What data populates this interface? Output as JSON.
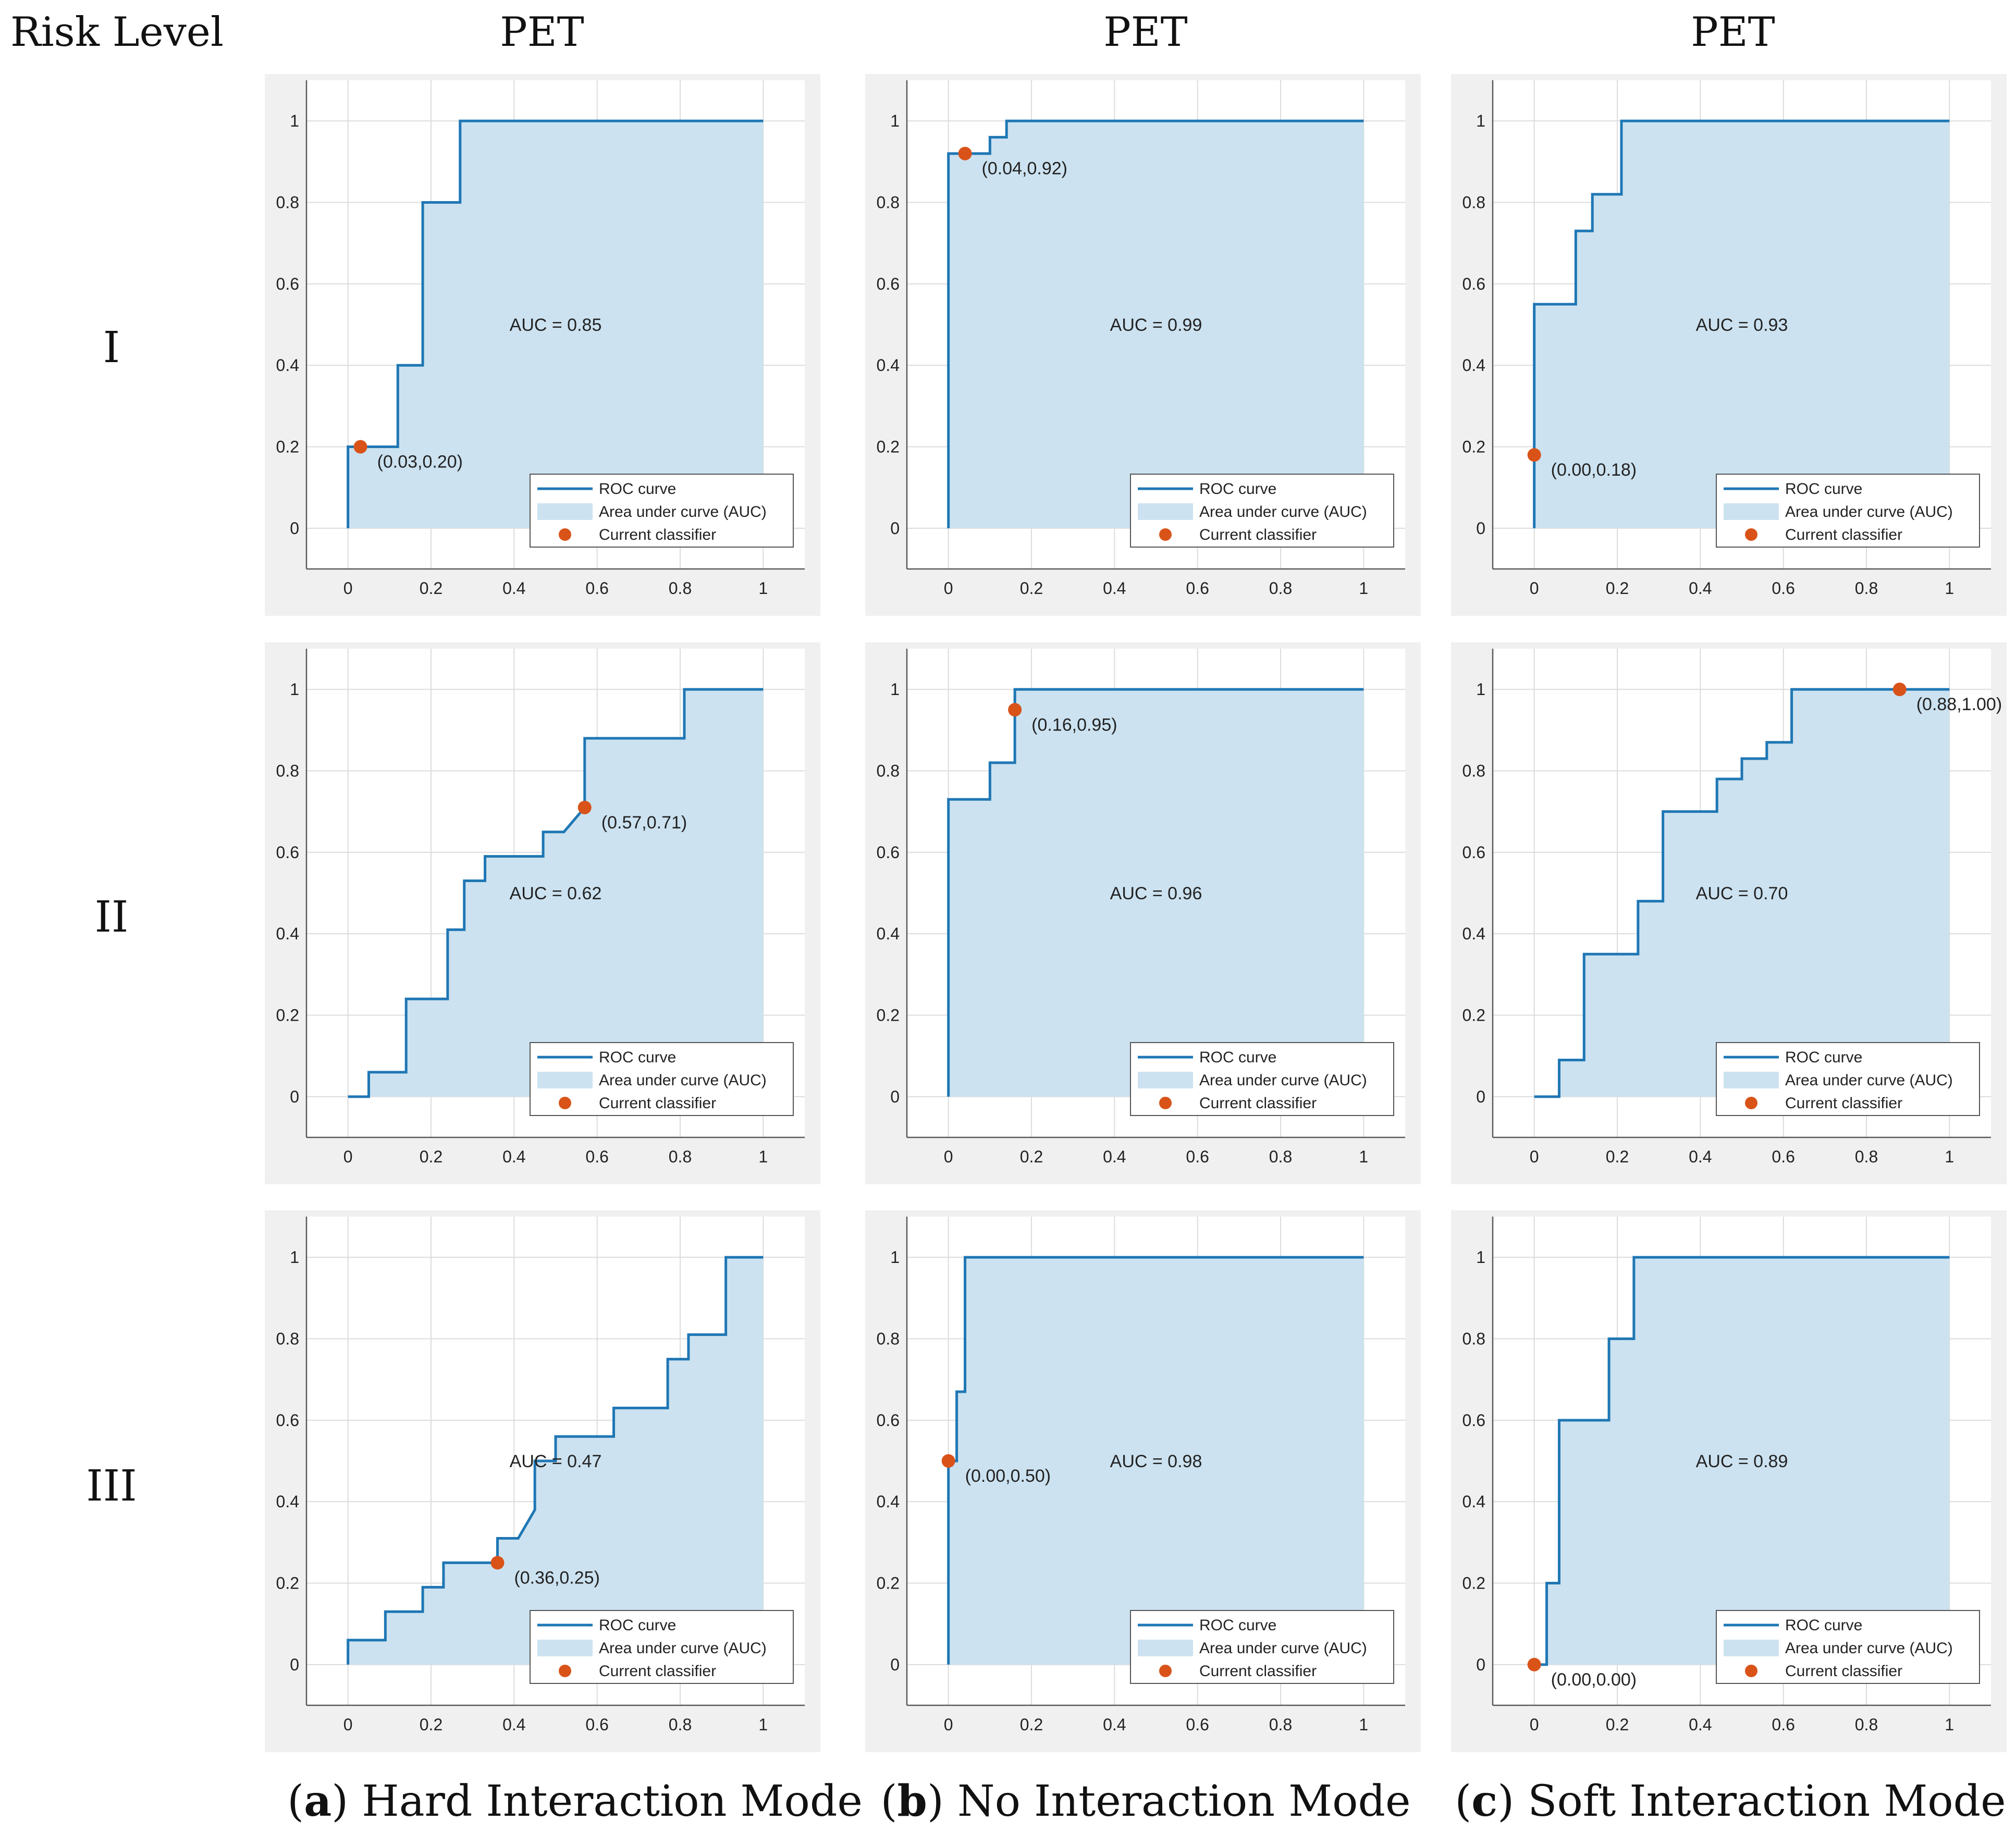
{
  "header": {
    "risk_level_label": "Risk Level",
    "column_titles": [
      "PET",
      "PET",
      "PET"
    ]
  },
  "row_labels": [
    "I",
    "II",
    "III"
  ],
  "captions": [
    {
      "letter": "a",
      "text": " Hard Interaction Mode"
    },
    {
      "letter": "b",
      "text": " No Interaction Mode"
    },
    {
      "letter": "c",
      "text": " Soft Interaction Mode"
    }
  ],
  "colors": {
    "roc_line": "#1f77b4",
    "auc_fill": "#cce2f0",
    "classifier_point": "#d95319"
  },
  "chart_data": [
    {
      "type": "line",
      "title": "",
      "column": "Hard Interaction Mode",
      "risk_level": "I",
      "legend": [
        "ROC curve",
        "Area under curve (AUC)",
        "Current classifier"
      ],
      "auc_label": "AUC = 0.85",
      "point_label": "(0.03,0.20)",
      "point": [
        0.03,
        0.2
      ],
      "xlim": [
        -0.1,
        1.1
      ],
      "ylim": [
        -0.1,
        1.1
      ],
      "xticks": [
        0,
        0.2,
        0.4,
        0.6,
        0.8,
        1
      ],
      "yticks": [
        0,
        0.2,
        0.4,
        0.6,
        0.8,
        1
      ],
      "xticklabels": [
        "0",
        "0.2",
        "0.4",
        "0.6",
        "0.8",
        "1"
      ],
      "yticklabels": [
        "0",
        "0.2",
        "0.4",
        "0.6",
        "0.8",
        "1"
      ],
      "roc_fpr": [
        0,
        0,
        0.12,
        0.12,
        0.18,
        0.18,
        0.27,
        0.27,
        1
      ],
      "roc_tpr": [
        0,
        0.2,
        0.2,
        0.4,
        0.4,
        0.8,
        0.8,
        1,
        1
      ]
    },
    {
      "type": "line",
      "title": "",
      "column": "No Interaction Mode",
      "risk_level": "I",
      "legend": [
        "ROC curve",
        "Area under curve (AUC)",
        "Current classifier"
      ],
      "auc_label": "AUC = 0.99",
      "point_label": "(0.04,0.92)",
      "point": [
        0.04,
        0.92
      ],
      "xlim": [
        -0.1,
        1.1
      ],
      "ylim": [
        -0.1,
        1.1
      ],
      "xticks": [
        0,
        0.2,
        0.4,
        0.6,
        0.8,
        1
      ],
      "yticks": [
        0,
        0.2,
        0.4,
        0.6,
        0.8,
        1
      ],
      "xticklabels": [
        "0",
        "0.2",
        "0.4",
        "0.6",
        "0.8",
        "1"
      ],
      "yticklabels": [
        "0",
        "0.2",
        "0.4",
        "0.6",
        "0.8",
        "1"
      ],
      "roc_fpr": [
        0,
        0,
        0.1,
        0.1,
        0.14,
        0.14,
        1
      ],
      "roc_tpr": [
        0,
        0.92,
        0.92,
        0.96,
        0.96,
        1,
        1
      ]
    },
    {
      "type": "line",
      "title": "",
      "column": "Soft Interaction Mode",
      "risk_level": "I",
      "legend": [
        "ROC curve",
        "Area under curve (AUC)",
        "Current classifier"
      ],
      "auc_label": "AUC = 0.93",
      "point_label": "(0.00,0.18)",
      "point": [
        0.0,
        0.18
      ],
      "xlim": [
        -0.1,
        1.1
      ],
      "ylim": [
        -0.1,
        1.1
      ],
      "xticks": [
        0,
        0.2,
        0.4,
        0.6,
        0.8,
        1
      ],
      "yticks": [
        0,
        0.2,
        0.4,
        0.6,
        0.8,
        1
      ],
      "xticklabels": [
        "0",
        "0.2",
        "0.4",
        "0.6",
        "0.8",
        "1"
      ],
      "yticklabels": [
        "0",
        "0.2",
        "0.4",
        "0.6",
        "0.8",
        "1"
      ],
      "roc_fpr": [
        0,
        0,
        0.1,
        0.1,
        0.14,
        0.14,
        0.21,
        0.21,
        1
      ],
      "roc_tpr": [
        0,
        0.55,
        0.55,
        0.73,
        0.73,
        0.82,
        0.82,
        1,
        1
      ]
    },
    {
      "type": "line",
      "title": "",
      "column": "Hard Interaction Mode",
      "risk_level": "II",
      "legend": [
        "ROC curve",
        "Area under curve (AUC)",
        "Current classifier"
      ],
      "auc_label": "AUC = 0.62",
      "point_label": "(0.57,0.71)",
      "point": [
        0.57,
        0.71
      ],
      "xlim": [
        -0.1,
        1.1
      ],
      "ylim": [
        -0.1,
        1.1
      ],
      "xticks": [
        0,
        0.2,
        0.4,
        0.6,
        0.8,
        1
      ],
      "yticks": [
        0,
        0.2,
        0.4,
        0.6,
        0.8,
        1
      ],
      "xticklabels": [
        "0",
        "0.2",
        "0.4",
        "0.6",
        "0.8",
        "1"
      ],
      "yticklabels": [
        "0",
        "0.2",
        "0.4",
        "0.6",
        "0.8",
        "1"
      ],
      "roc_fpr": [
        0,
        0.05,
        0.05,
        0.14,
        0.14,
        0.24,
        0.24,
        0.28,
        0.28,
        0.33,
        0.33,
        0.47,
        0.47,
        0.52,
        0.57,
        0.57,
        0.81,
        0.81,
        1
      ],
      "roc_tpr": [
        0,
        0,
        0.06,
        0.06,
        0.24,
        0.24,
        0.41,
        0.41,
        0.53,
        0.53,
        0.59,
        0.59,
        0.65,
        0.65,
        0.71,
        0.88,
        0.88,
        1,
        1
      ]
    },
    {
      "type": "line",
      "title": "",
      "column": "No Interaction Mode",
      "risk_level": "II",
      "legend": [
        "ROC curve",
        "Area under curve (AUC)",
        "Current classifier"
      ],
      "auc_label": "AUC = 0.96",
      "point_label": "(0.16,0.95)",
      "point": [
        0.16,
        0.95
      ],
      "xlim": [
        -0.1,
        1.1
      ],
      "ylim": [
        -0.1,
        1.1
      ],
      "xticks": [
        0,
        0.2,
        0.4,
        0.6,
        0.8,
        1
      ],
      "yticks": [
        0,
        0.2,
        0.4,
        0.6,
        0.8,
        1
      ],
      "xticklabels": [
        "0",
        "0.2",
        "0.4",
        "0.6",
        "0.8",
        "1"
      ],
      "yticklabels": [
        "0",
        "0.2",
        "0.4",
        "0.6",
        "0.8",
        "1"
      ],
      "roc_fpr": [
        0,
        0,
        0.1,
        0.1,
        0.16,
        0.16,
        0.16,
        1
      ],
      "roc_tpr": [
        0,
        0.73,
        0.73,
        0.82,
        0.82,
        0.95,
        1,
        1
      ]
    },
    {
      "type": "line",
      "title": "",
      "column": "Soft Interaction Mode",
      "risk_level": "II",
      "legend": [
        "ROC curve",
        "Area under curve (AUC)",
        "Current classifier"
      ],
      "auc_label": "AUC = 0.70",
      "point_label": "(0.88,1.00)",
      "point": [
        0.88,
        1.0
      ],
      "xlim": [
        -0.1,
        1.1
      ],
      "ylim": [
        -0.1,
        1.1
      ],
      "xticks": [
        0,
        0.2,
        0.4,
        0.6,
        0.8,
        1
      ],
      "yticks": [
        0,
        0.2,
        0.4,
        0.6,
        0.8,
        1
      ],
      "xticklabels": [
        "0",
        "0.2",
        "0.4",
        "0.6",
        "0.8",
        "1"
      ],
      "yticklabels": [
        "0",
        "0.2",
        "0.4",
        "0.6",
        "0.8",
        "1"
      ],
      "roc_fpr": [
        0,
        0.06,
        0.06,
        0.12,
        0.12,
        0.25,
        0.25,
        0.31,
        0.31,
        0.44,
        0.44,
        0.5,
        0.5,
        0.56,
        0.56,
        0.62,
        0.62,
        1
      ],
      "roc_tpr": [
        0,
        0,
        0.09,
        0.09,
        0.35,
        0.35,
        0.48,
        0.48,
        0.7,
        0.7,
        0.78,
        0.78,
        0.83,
        0.83,
        0.87,
        0.87,
        1,
        1
      ]
    },
    {
      "type": "line",
      "title": "",
      "column": "Hard Interaction Mode",
      "risk_level": "III",
      "legend": [
        "ROC curve",
        "Area under curve (AUC)",
        "Current classifier"
      ],
      "auc_label": "AUC = 0.47",
      "point_label": "(0.36,0.25)",
      "point": [
        0.36,
        0.25
      ],
      "xlim": [
        -0.1,
        1.1
      ],
      "ylim": [
        -0.1,
        1.1
      ],
      "xticks": [
        0,
        0.2,
        0.4,
        0.6,
        0.8,
        1
      ],
      "yticks": [
        0,
        0.2,
        0.4,
        0.6,
        0.8,
        1
      ],
      "xticklabels": [
        "0",
        "0.2",
        "0.4",
        "0.6",
        "0.8",
        "1"
      ],
      "yticklabels": [
        "0",
        "0.2",
        "0.4",
        "0.6",
        "0.8",
        "1"
      ],
      "roc_fpr": [
        0,
        0,
        0.09,
        0.09,
        0.18,
        0.18,
        0.23,
        0.23,
        0.36,
        0.36,
        0.41,
        0.45,
        0.45,
        0.5,
        0.5,
        0.64,
        0.64,
        0.77,
        0.77,
        0.82,
        0.82,
        0.91,
        0.91,
        1
      ],
      "roc_tpr": [
        0,
        0.06,
        0.06,
        0.13,
        0.13,
        0.19,
        0.19,
        0.25,
        0.25,
        0.31,
        0.31,
        0.38,
        0.5,
        0.5,
        0.56,
        0.56,
        0.63,
        0.63,
        0.75,
        0.75,
        0.81,
        0.81,
        1,
        1
      ]
    },
    {
      "type": "line",
      "title": "",
      "column": "No Interaction Mode",
      "risk_level": "III",
      "legend": [
        "ROC curve",
        "Area under curve (AUC)",
        "Current classifier"
      ],
      "auc_label": "AUC = 0.98",
      "point_label": "(0.00,0.50)",
      "point": [
        0.0,
        0.5
      ],
      "xlim": [
        -0.1,
        1.1
      ],
      "ylim": [
        -0.1,
        1.1
      ],
      "xticks": [
        0,
        0.2,
        0.4,
        0.6,
        0.8,
        1
      ],
      "yticks": [
        0,
        0.2,
        0.4,
        0.6,
        0.8,
        1
      ],
      "xticklabels": [
        "0",
        "0.2",
        "0.4",
        "0.6",
        "0.8",
        "1"
      ],
      "yticklabels": [
        "0",
        "0.2",
        "0.4",
        "0.6",
        "0.8",
        "1"
      ],
      "roc_fpr": [
        0,
        0,
        0.02,
        0.02,
        0.04,
        0.04,
        1
      ],
      "roc_tpr": [
        0,
        0.5,
        0.5,
        0.67,
        0.67,
        1,
        1
      ]
    },
    {
      "type": "line",
      "title": "",
      "column": "Soft Interaction Mode",
      "risk_level": "III",
      "legend": [
        "ROC curve",
        "Area under curve (AUC)",
        "Current classifier"
      ],
      "auc_label": "AUC = 0.89",
      "point_label": "(0.00,0.00)",
      "point": [
        0.0,
        0.0
      ],
      "xlim": [
        -0.1,
        1.1
      ],
      "ylim": [
        -0.1,
        1.1
      ],
      "xticks": [
        0,
        0.2,
        0.4,
        0.6,
        0.8,
        1
      ],
      "yticks": [
        0,
        0.2,
        0.4,
        0.6,
        0.8,
        1
      ],
      "xticklabels": [
        "0",
        "0.2",
        "0.4",
        "0.6",
        "0.8",
        "1"
      ],
      "yticklabels": [
        "0",
        "0.2",
        "0.4",
        "0.6",
        "0.8",
        "1"
      ],
      "roc_fpr": [
        0,
        0.03,
        0.03,
        0.06,
        0.06,
        0.18,
        0.18,
        0.24,
        0.24,
        1
      ],
      "roc_tpr": [
        0,
        0,
        0.2,
        0.2,
        0.6,
        0.6,
        0.8,
        0.8,
        1,
        1
      ]
    }
  ]
}
